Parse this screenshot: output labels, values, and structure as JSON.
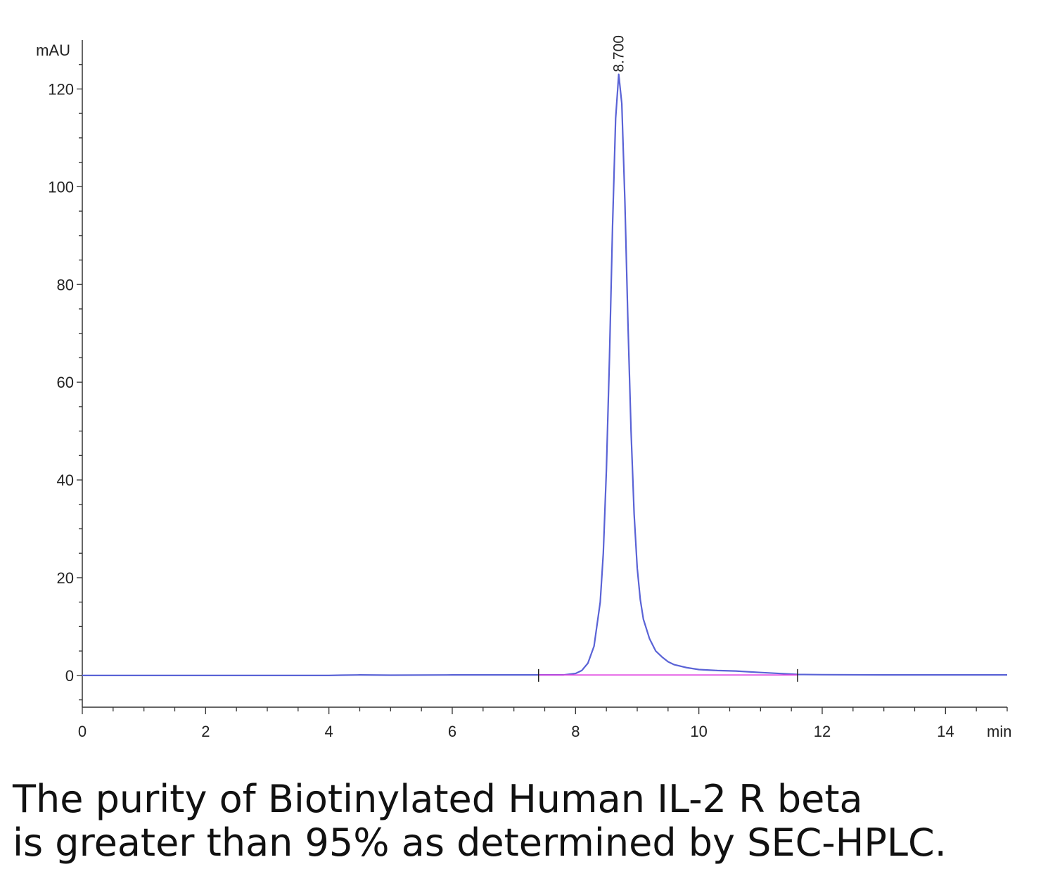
{
  "chart_data": {
    "type": "line",
    "title": "",
    "xlabel": "",
    "ylabel": "",
    "x_unit": "min",
    "y_unit": "mAU",
    "xlim": [
      0,
      15
    ],
    "ylim": [
      -6.5,
      130
    ],
    "x_ticks": [
      0,
      2,
      4,
      6,
      8,
      10,
      12,
      14
    ],
    "y_ticks": [
      0,
      20,
      40,
      60,
      80,
      100,
      120
    ],
    "grid": false,
    "series": [
      {
        "color": "#5a63d6",
        "x": [
          0,
          2,
          4,
          4.2,
          4.5,
          5,
          6,
          7,
          7.4,
          7.8,
          8.0,
          8.1,
          8.2,
          8.3,
          8.4,
          8.45,
          8.5,
          8.55,
          8.6,
          8.65,
          8.7,
          8.75,
          8.8,
          8.85,
          8.9,
          8.95,
          9.0,
          9.05,
          9.1,
          9.2,
          9.3,
          9.4,
          9.5,
          9.6,
          9.8,
          10.0,
          10.3,
          10.6,
          11.0,
          11.3,
          11.6,
          12.0,
          13.0,
          14.0,
          15.0
        ],
        "y": [
          0,
          0,
          0,
          0.05,
          0.1,
          0.05,
          0.1,
          0.1,
          0.1,
          0.1,
          0.4,
          1.0,
          2.5,
          6.0,
          15.0,
          25.0,
          42.0,
          65.0,
          92.0,
          114.0,
          123.0,
          117.0,
          97.0,
          72.0,
          50.0,
          33.0,
          22.0,
          15.5,
          11.5,
          7.5,
          5.0,
          3.8,
          2.8,
          2.2,
          1.6,
          1.2,
          1.0,
          0.9,
          0.6,
          0.4,
          0.2,
          0.15,
          0.1,
          0.1,
          0.1
        ]
      },
      {
        "color": "#e040e0",
        "x": [
          7.4,
          11.6
        ],
        "y": [
          0.1,
          0.1
        ]
      }
    ],
    "annotations": [
      {
        "text": "8.700",
        "x": 8.7,
        "y": 123
      }
    ],
    "baseline_markers": [
      7.4,
      11.6
    ]
  },
  "caption": {
    "line1": "The purity of Biotinylated Human IL-2 R beta",
    "line2": "is greater than 95% as determined by SEC-HPLC."
  }
}
